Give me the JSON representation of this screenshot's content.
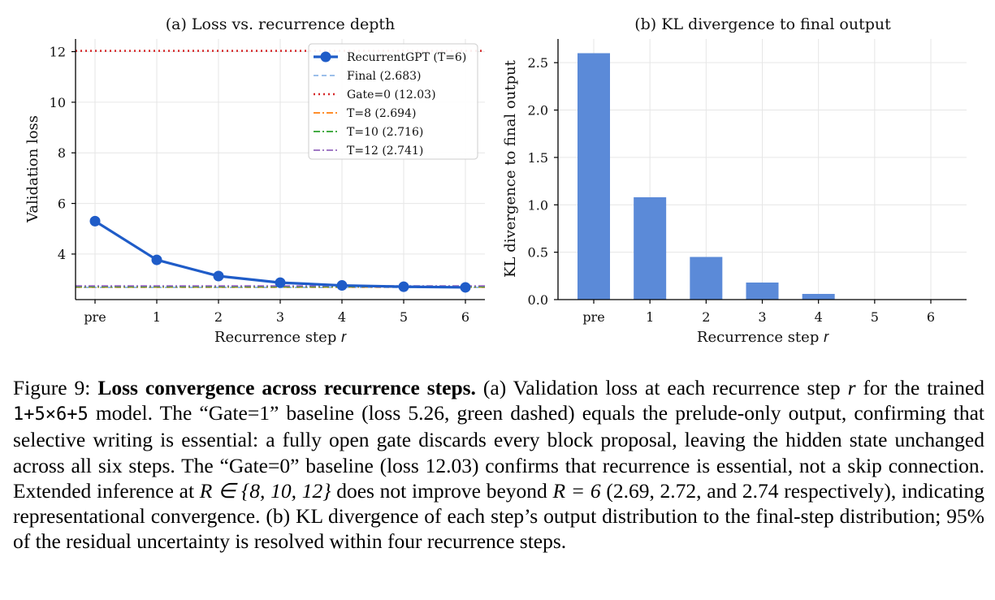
{
  "colors": {
    "main": "#1f5cc8",
    "final": "#8fb6e8",
    "gate0": "#d62728",
    "t8": "#ff7f0e",
    "t10": "#2ca02c",
    "t12": "#9467bd",
    "bar": "#5b8ad8",
    "grid": "#e6e6e6",
    "axis": "#000000"
  },
  "chart_data": [
    {
      "type": "line",
      "title": "(a) Loss vs. recurrence depth",
      "xlabel": "Recurrence step",
      "xlabel_var": "r",
      "ylabel": "Validation loss",
      "categories": [
        "pre",
        "1",
        "2",
        "3",
        "4",
        "5",
        "6"
      ],
      "ylim": [
        2.2,
        12.5
      ],
      "yticks": [
        4,
        6,
        8,
        10,
        12
      ],
      "grid": true,
      "legend_position": "top-right",
      "series": [
        {
          "name": "RecurrentGPT (T=6)",
          "style": "solid-marker",
          "values": [
            5.3,
            3.77,
            3.13,
            2.87,
            2.76,
            2.71,
            2.683
          ]
        }
      ],
      "reference_lines": [
        {
          "name": "Final (2.683)",
          "style": "dashed",
          "value": 2.683
        },
        {
          "name": "Gate=0 (12.03)",
          "style": "dotted",
          "value": 12.03
        },
        {
          "name": "T=8 (2.694)",
          "style": "dashdot",
          "value": 2.694
        },
        {
          "name": "T=10 (2.716)",
          "style": "dashdot",
          "value": 2.716
        },
        {
          "name": "T=12 (2.741)",
          "style": "dashdot",
          "value": 2.741
        }
      ]
    },
    {
      "type": "bar",
      "title": "(b) KL divergence to final output",
      "xlabel": "Recurrence step",
      "xlabel_var": "r",
      "ylabel": "KL divergence to final output",
      "categories": [
        "pre",
        "1",
        "2",
        "3",
        "4",
        "5",
        "6"
      ],
      "values": [
        2.6,
        1.08,
        0.45,
        0.18,
        0.06,
        0.0,
        0.0
      ],
      "ylim": [
        0,
        2.75
      ],
      "yticks": [
        "0.0",
        "0.5",
        "1.0",
        "1.5",
        "2.0",
        "2.5"
      ],
      "grid": true
    }
  ],
  "caption": {
    "label": "Figure 9:",
    "bold": "Loss convergence across recurrence steps.",
    "t1": " (a) Validation loss at each recurrence step ",
    "r": "r",
    "t2": " for the trained ",
    "model": "1+5×6+5",
    "t3": " model. The “Gate=1” baseline (loss 5.26, green dashed) equals the prelude-only output, confirming that selective writing is essential: a fully open gate discards every block proposal, leaving the hidden state unchanged across all six steps. The “Gate=0” baseline (loss 12.03) confirms that recurrence is essential, not a skip connection. Extended inference at ",
    "m1": "R ∈ {8, 10, 12}",
    "t4": " does not improve beyond ",
    "m2": "R = 6",
    "t5": " (2.69, 2.72, and 2.74 respectively), indicating representational convergence. (b) KL divergence of each step’s output distribution to the final-step distribution; 95% of the residual uncertainty is resolved within four recurrence steps."
  }
}
